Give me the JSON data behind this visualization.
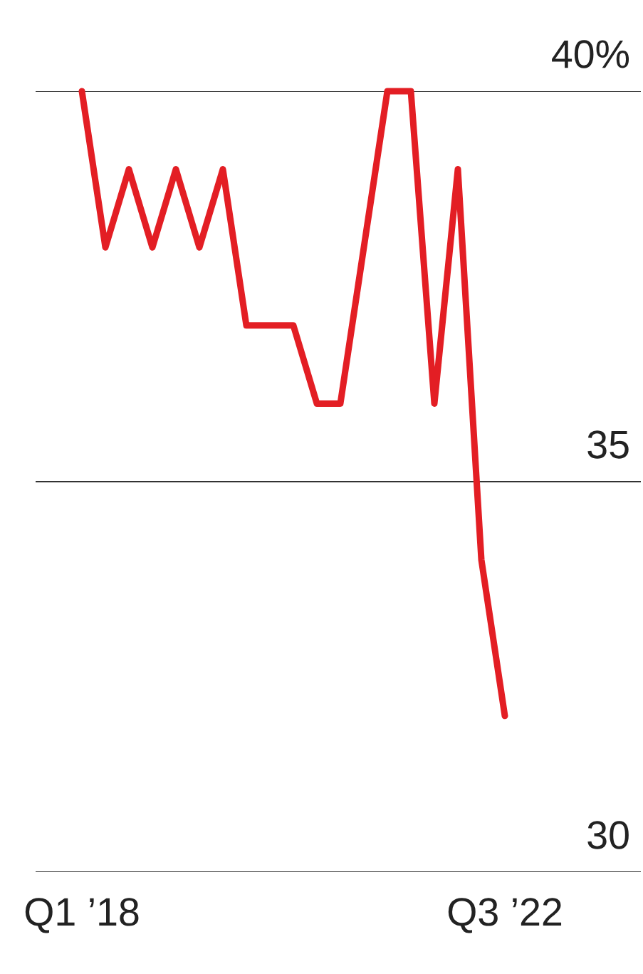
{
  "chart_data": {
    "type": "line",
    "categories": [
      "Q1 ’18",
      null,
      null,
      null,
      null,
      null,
      null,
      null,
      null,
      null,
      null,
      null,
      null,
      null,
      null,
      null,
      null,
      null,
      "Q3 ’22"
    ],
    "series": [
      {
        "color": "#e31e24",
        "values": [
          40,
          38,
          39,
          38,
          39,
          38,
          39,
          37,
          37,
          37,
          36,
          36,
          38,
          40,
          40,
          36,
          39,
          34,
          32
        ]
      }
    ],
    "ylim": [
      30,
      40
    ],
    "yticks": [
      {
        "value": 30,
        "label": "30"
      },
      {
        "value": 35,
        "label": "35"
      },
      {
        "value": 40,
        "label": "40%"
      }
    ],
    "grid": "y",
    "marker": "none",
    "line_style": "solid",
    "legend": false
  }
}
